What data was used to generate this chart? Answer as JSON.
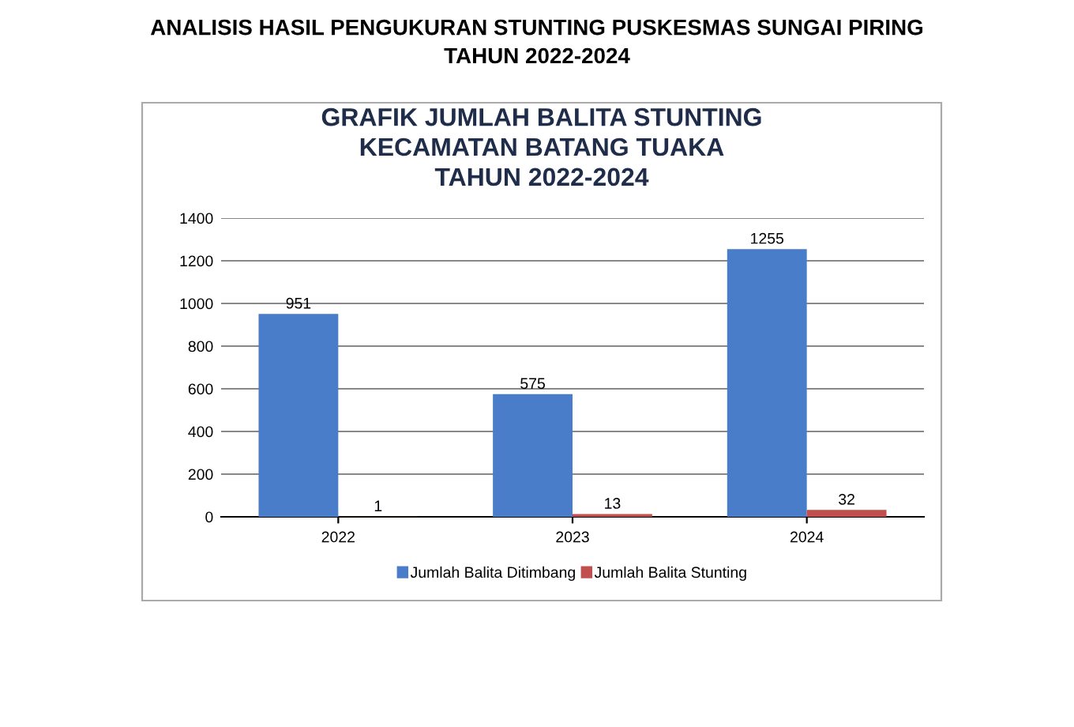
{
  "chart_data": {
    "type": "bar",
    "title": "ANALISIS HASIL PENGUKURAN STUNTING PUSKESMAS SUNGAI PIRING\nTAHUN 2022-2024",
    "subtitle": "GRAFIK JUMLAH BALITA STUNTING\nKECAMATAN BATANG TUAKA\nTAHUN 2022-2024",
    "categories": [
      "2022",
      "2023",
      "2024"
    ],
    "series": [
      {
        "name": "Jumlah Balita Ditimbang",
        "color": "#4a7dc9",
        "values": [
          951,
          575,
          1255
        ]
      },
      {
        "name": "Jumlah Balita Stunting",
        "color": "#c0504d",
        "values": [
          1,
          13,
          32
        ]
      }
    ],
    "ylim": [
      0,
      1400
    ],
    "yticks": [
      0,
      200,
      400,
      600,
      800,
      1000,
      1200,
      1400
    ],
    "grid": "y",
    "legend": "bottom",
    "data_labels": true
  }
}
